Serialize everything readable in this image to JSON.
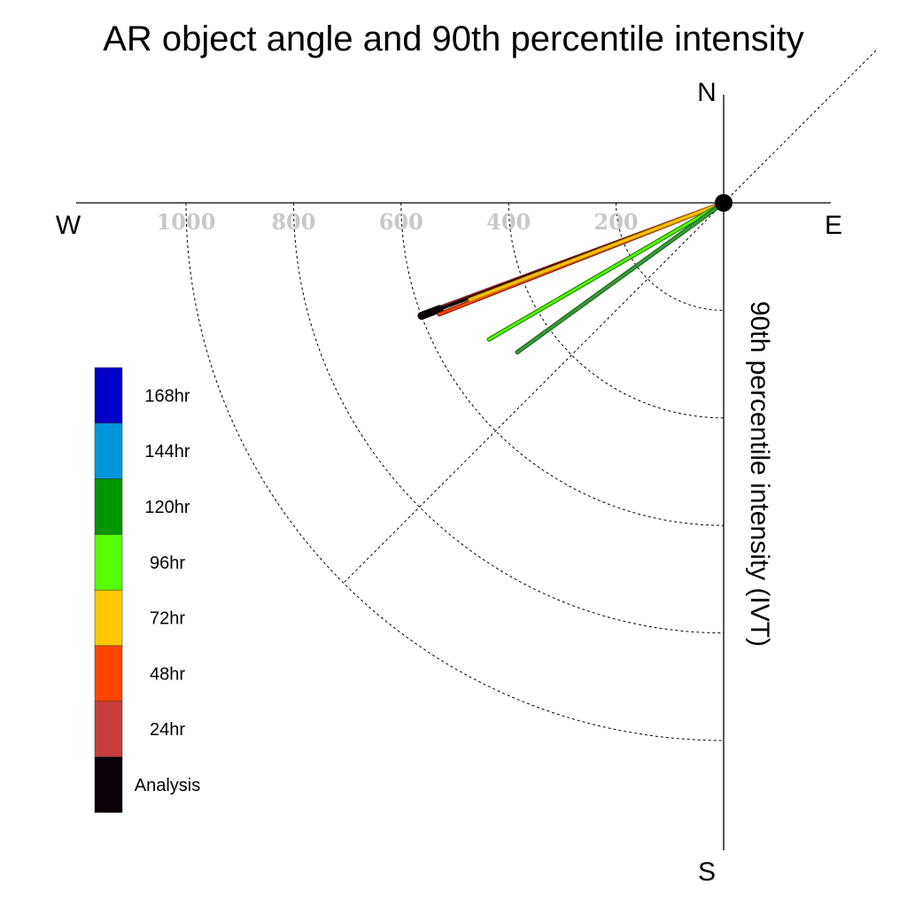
{
  "chart_data": {
    "type": "line",
    "title": "AR object angle and 90th percentile intensity",
    "ylabel": "90th percentile intensity (IVT)",
    "compass": {
      "north": "N",
      "south": "S",
      "east": "E",
      "west": "W"
    },
    "rings": [
      200,
      400,
      600,
      800,
      1000
    ],
    "ring_labels": [
      "200",
      "400",
      "600",
      "800",
      "1000"
    ],
    "grid": true,
    "legend_position": "bottom-left",
    "legend": [
      {
        "label": "168hr",
        "color": "#0000c8"
      },
      {
        "label": "144hr",
        "color": "#0096dc"
      },
      {
        "label": "120hr",
        "color": "#009600"
      },
      {
        "label": "96hr",
        "color": "#55ff00"
      },
      {
        "label": "72hr",
        "color": "#ffc800"
      },
      {
        "label": "48hr",
        "color": "#ff4600"
      },
      {
        "label": "24hr",
        "color": "#c83c3c"
      },
      {
        "label": "Analysis",
        "color": "#0a0008"
      }
    ],
    "series": [
      {
        "name": "24hr",
        "angle_deg_below_west": 20.3,
        "intensity": 600,
        "color": "#c83c3c",
        "outline": "#8b1e1e"
      },
      {
        "name": "Analysis",
        "angle_deg_below_west": 20.5,
        "intensity": 600,
        "color": "#0a0008",
        "outline": "#0a0008"
      },
      {
        "name": "48hr",
        "angle_deg_below_west": 21.4,
        "intensity": 568,
        "color": "#ff4600",
        "outline": "#8b2000"
      },
      {
        "name": "72hr",
        "angle_deg_below_west": 20.9,
        "intensity": 505,
        "color": "#ffc800",
        "outline": "#c08000"
      },
      {
        "name": "96hr",
        "angle_deg_below_west": 30.2,
        "intensity": 505,
        "color": "#55ff00",
        "outline": "#2a8a00"
      },
      {
        "name": "120hr",
        "angle_deg_below_west": 35.9,
        "intensity": 474,
        "color": "#3a9a3a",
        "outline": "#1e6e1e"
      }
    ]
  }
}
